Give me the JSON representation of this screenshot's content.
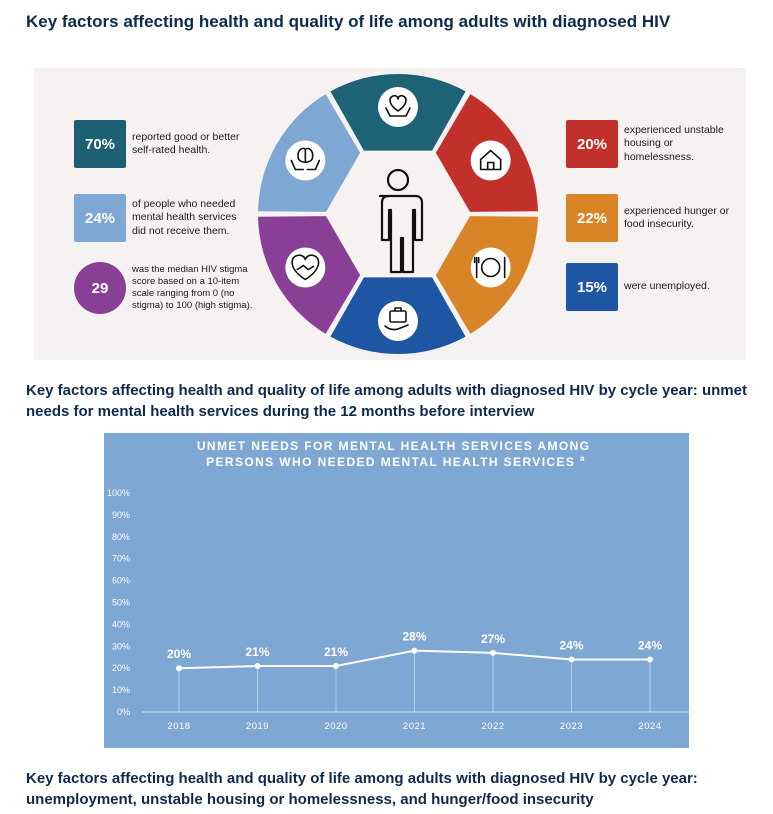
{
  "heading1": "Key factors affecting health and quality of life among adults with diagnosed HIV",
  "left_stats": [
    {
      "value": "70%",
      "text": "reported good or better self-rated health.",
      "color": "#1d5f73"
    },
    {
      "value": "24%",
      "text": "of people who needed mental health services did not receive them.",
      "color": "#7ea7d3"
    },
    {
      "value": "29",
      "text": "was the median HIV stigma score based on a 10-item scale ranging from 0 (no stigma) to 100 (high stigma).",
      "color": "#8a3f96"
    }
  ],
  "right_stats": [
    {
      "value": "20%",
      "text": "experienced unstable housing or homelessness.",
      "color": "#c2302c"
    },
    {
      "value": "22%",
      "text": "experienced hunger or food insecurity.",
      "color": "#d98527"
    },
    {
      "value": "15%",
      "text": "were unemployed.",
      "color": "#1e56a3"
    }
  ],
  "wheel_segments": [
    {
      "icon": "health-care-hands-icon",
      "color": "#1d6275"
    },
    {
      "icon": "house-icon",
      "color": "#c2302c"
    },
    {
      "icon": "plate-utensils-icon",
      "color": "#d98527"
    },
    {
      "icon": "briefcase-hand-icon",
      "color": "#1e56a3"
    },
    {
      "icon": "heart-handshake-icon",
      "color": "#8a3f96"
    },
    {
      "icon": "brain-hands-icon",
      "color": "#7ea7d3"
    }
  ],
  "heading2": "Key factors affecting health and quality of life among adults with diagnosed HIV by cycle year: unmet needs for mental health services during the 12 months before interview",
  "chart_data": {
    "type": "line",
    "title": "UNMET NEEDS FOR MENTAL HEALTH SERVICES AMONG PERSONS WHO NEEDED MENTAL HEALTH SERVICES",
    "title_superscript": "a",
    "categories": [
      "2018",
      "2019",
      "2020",
      "2021",
      "2022",
      "2023",
      "2024"
    ],
    "values": [
      20,
      21,
      21,
      28,
      27,
      24,
      24
    ],
    "data_labels": [
      "20%",
      "21%",
      "21%",
      "28%",
      "27%",
      "24%",
      "24%"
    ],
    "yticks": [
      "0%",
      "10%",
      "20%",
      "30%",
      "40%",
      "50%",
      "60%",
      "70%",
      "80%",
      "90%",
      "100%"
    ],
    "ylim": [
      0,
      100
    ],
    "background": "#7ea7d3",
    "line_color": "#ffffff"
  },
  "heading3": "Key factors affecting health and quality of life among adults with diagnosed HIV by cycle year: unemployment, unstable housing or homelessness, and hunger/food insecurity"
}
